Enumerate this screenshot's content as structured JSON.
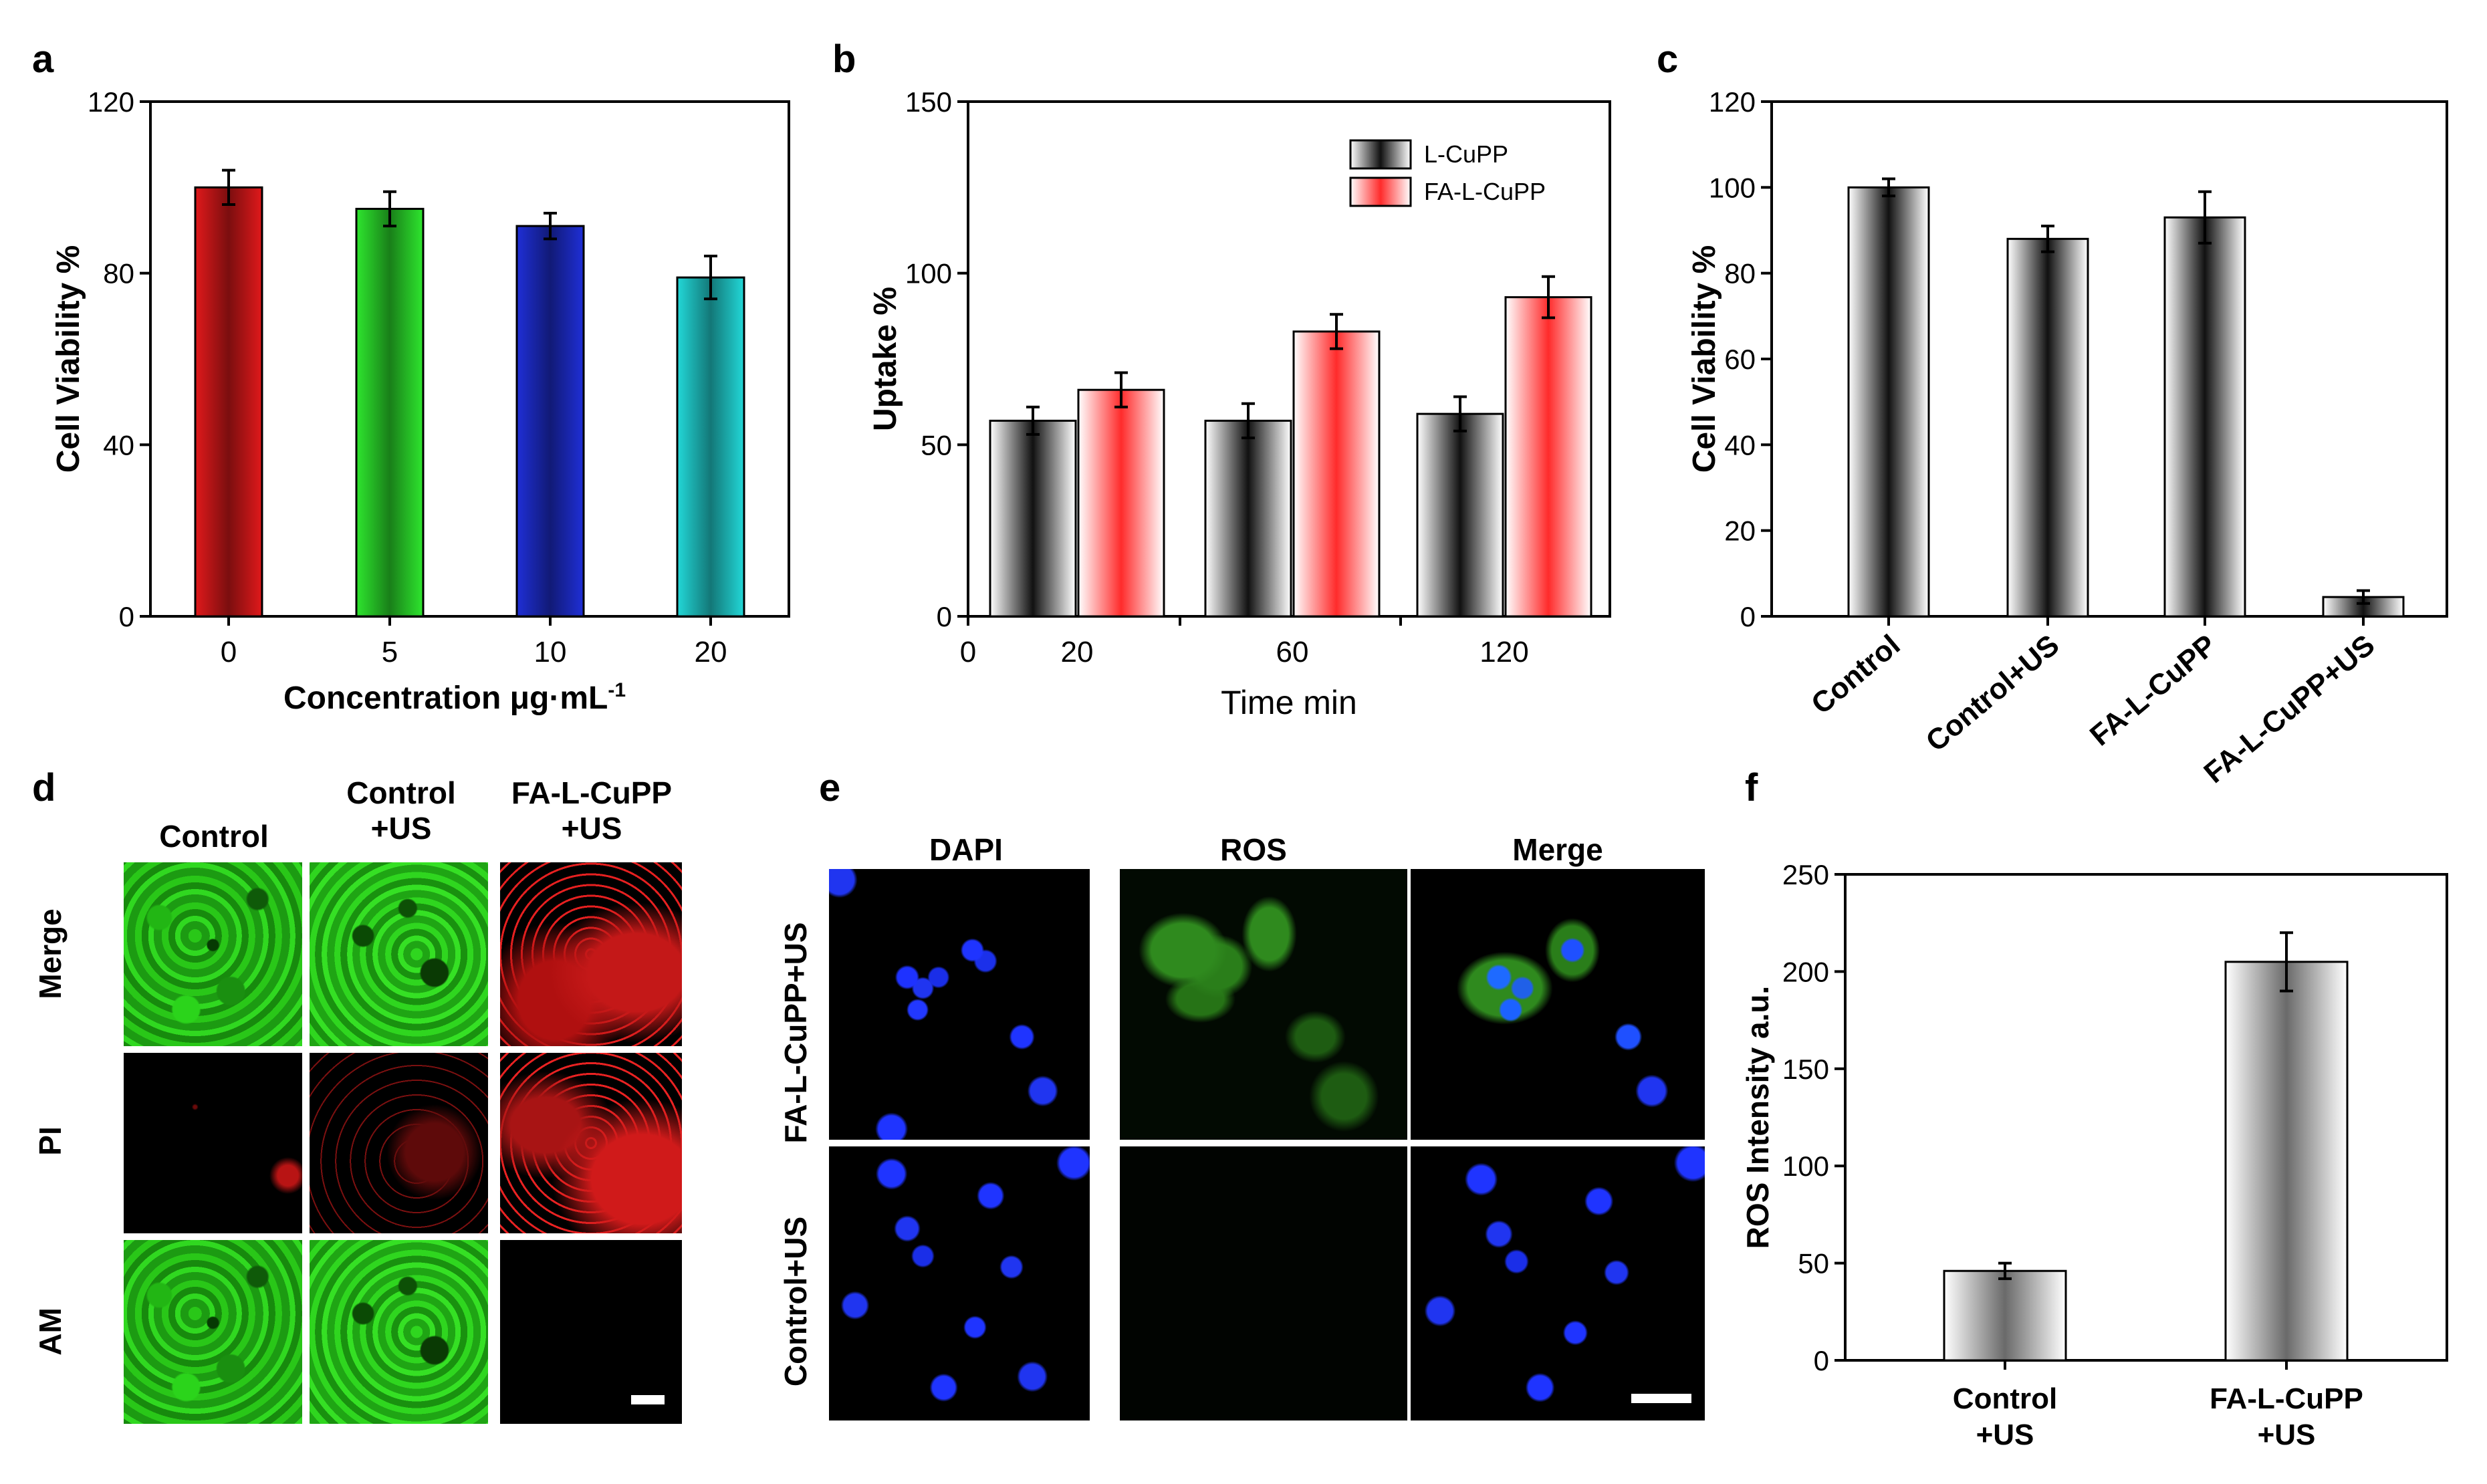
{
  "colors": {
    "bar_a": [
      "#e0191b",
      "#2ee62e",
      "#1f2fd6",
      "#22d8d8"
    ],
    "grad_black": "#111111",
    "grad_red": "#ff2b2b",
    "dapi": "#2030ff",
    "ros": "#2a9a1a",
    "pi": "#ff2020",
    "am": "#24c016"
  },
  "panels": {
    "a": "a",
    "b": "b",
    "c": "c",
    "d": "d",
    "e": "e",
    "f": "f"
  },
  "chart_data": [
    {
      "id": "a",
      "type": "bar",
      "categories": [
        "0",
        "5",
        "10",
        "20"
      ],
      "values": [
        100,
        95,
        91,
        79
      ],
      "errors": [
        4,
        4,
        3,
        5
      ],
      "ylabel": "Cell Viability %",
      "xlabel": "Concentration μg·mL",
      "xlabel_sup": "-1",
      "ylim": [
        0,
        120
      ],
      "yticks": [
        "0",
        "40",
        "80",
        "120"
      ]
    },
    {
      "id": "b",
      "type": "bar",
      "categories": [
        "20",
        "60",
        "120"
      ],
      "series": [
        {
          "name": "L-CuPP",
          "values": [
            57,
            57,
            59
          ],
          "errors": [
            4,
            5,
            5
          ]
        },
        {
          "name": "FA-L-CuPP",
          "values": [
            66,
            83,
            93
          ],
          "errors": [
            5,
            5,
            6
          ]
        }
      ],
      "extra_xtick": "0",
      "ylabel": "Uptake %",
      "xlabel": "Time min",
      "ylim": [
        0,
        150
      ],
      "yticks": [
        "0",
        "50",
        "100",
        "150"
      ],
      "legend_position": "top-right"
    },
    {
      "id": "c",
      "type": "bar",
      "categories": [
        "Control",
        "Control+US",
        "FA-L-CuPP",
        "FA-L-CuPP+US"
      ],
      "values": [
        100,
        88,
        93,
        4.5
      ],
      "errors": [
        2,
        3,
        6,
        1.5
      ],
      "ylabel": "Cell Viability %",
      "ylim": [
        0,
        120
      ],
      "yticks": [
        "0",
        "20",
        "40",
        "60",
        "80",
        "100",
        "120"
      ]
    },
    {
      "id": "f",
      "type": "bar",
      "categories": [
        [
          "Control",
          "+US"
        ],
        [
          "FA-L-CuPP",
          "+US"
        ]
      ],
      "values": [
        46,
        205
      ],
      "errors": [
        4,
        15
      ],
      "ylabel": "ROS Intensity a.u.",
      "ylim": [
        0,
        250
      ],
      "yticks": [
        "0",
        "50",
        "100",
        "150",
        "200",
        "250"
      ]
    }
  ],
  "micrographs_d": {
    "columns": [
      "Control",
      "Control\n+US",
      "FA-L-CuPP\n+US"
    ],
    "rows": [
      "Merge",
      "PI",
      "AM"
    ]
  },
  "micrographs_e": {
    "columns": [
      "DAPI",
      "ROS",
      "Merge"
    ],
    "rows": [
      "FA-L-CuPP+US",
      "Control+US"
    ]
  }
}
